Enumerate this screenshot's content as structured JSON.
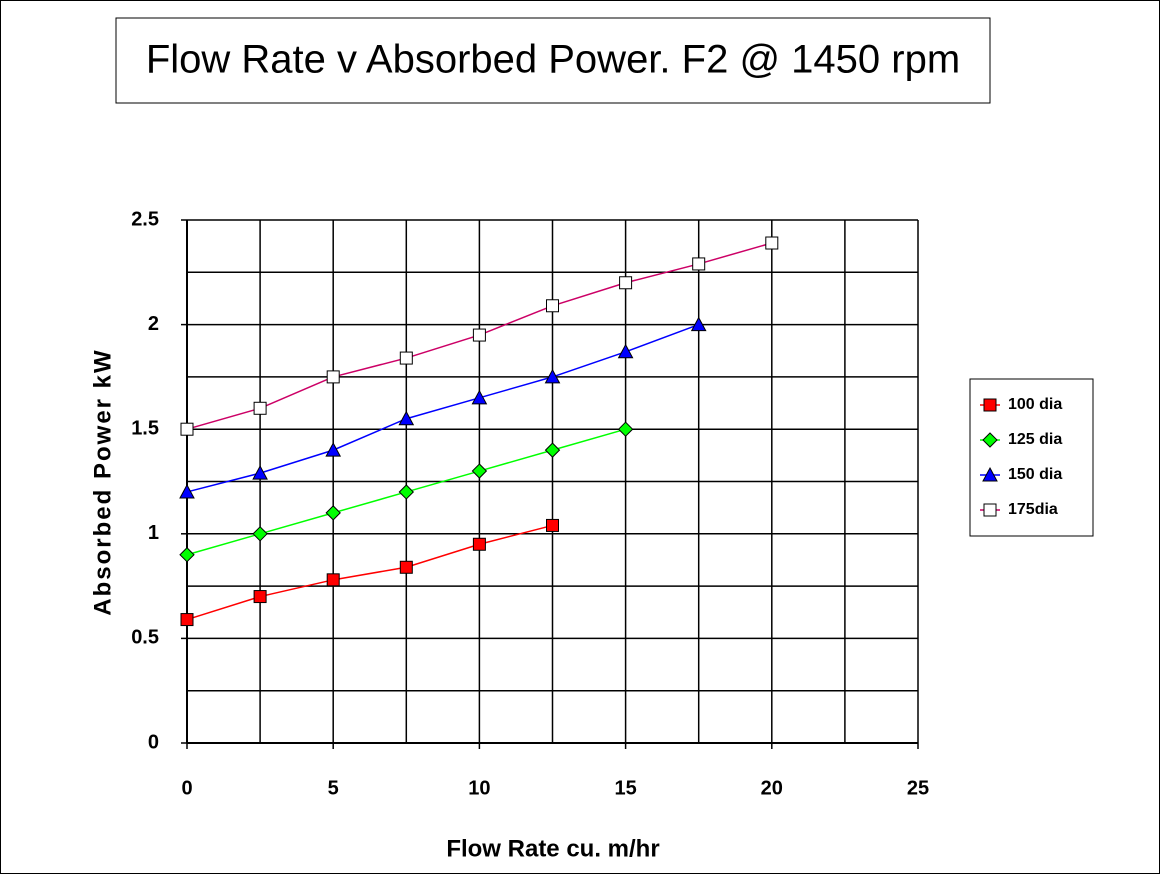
{
  "chart_data": {
    "type": "line",
    "title": "Flow Rate v Absorbed Power. F2 @ 1450 rpm",
    "x_label": "Flow Rate cu. m/hr",
    "y_label": "Absorbed Power kW",
    "xlim": [
      0,
      25
    ],
    "ylim": [
      0,
      2.5
    ],
    "xticks": [
      0,
      5,
      10,
      15,
      20,
      25
    ],
    "yticks": [
      0,
      0.5,
      1,
      1.5,
      2,
      2.5
    ],
    "x_grid": [
      0,
      2.5,
      5,
      7.5,
      10,
      12.5,
      15,
      17.5,
      20,
      22.5,
      25
    ],
    "y_grid": [
      0,
      0.25,
      0.5,
      0.75,
      1,
      1.25,
      1.5,
      1.75,
      2,
      2.25,
      2.5
    ],
    "grid": true,
    "legend": "right",
    "series": [
      {
        "name": "100 dia",
        "color": "#ff0000",
        "marker": "square",
        "marker_fill": "#ff0000",
        "x": [
          0,
          2.5,
          5,
          7.5,
          10,
          12.5
        ],
        "values": [
          0.59,
          0.7,
          0.78,
          0.84,
          0.95,
          1.04
        ]
      },
      {
        "name": "125 dia",
        "color": "#00ff00",
        "marker": "diamond",
        "marker_fill": "#00ff00",
        "x": [
          0,
          2.5,
          5,
          7.5,
          10,
          12.5,
          15
        ],
        "values": [
          0.9,
          1.0,
          1.1,
          1.2,
          1.3,
          1.4,
          1.5
        ]
      },
      {
        "name": "150 dia",
        "color": "#0000ff",
        "marker": "triangle",
        "marker_fill": "#0000ff",
        "x": [
          0,
          2.5,
          5,
          7.5,
          10,
          12.5,
          15,
          17.5
        ],
        "values": [
          1.2,
          1.29,
          1.4,
          1.55,
          1.65,
          1.75,
          1.87,
          2.0
        ]
      },
      {
        "name": "175dia",
        "color": "#cc0066",
        "marker": "square",
        "marker_fill": "#ffffff",
        "x": [
          0,
          2.5,
          5,
          7.5,
          10,
          12.5,
          15,
          17.5,
          20
        ],
        "values": [
          1.5,
          1.6,
          1.75,
          1.84,
          1.95,
          2.09,
          2.2,
          2.29,
          2.39
        ]
      }
    ]
  }
}
